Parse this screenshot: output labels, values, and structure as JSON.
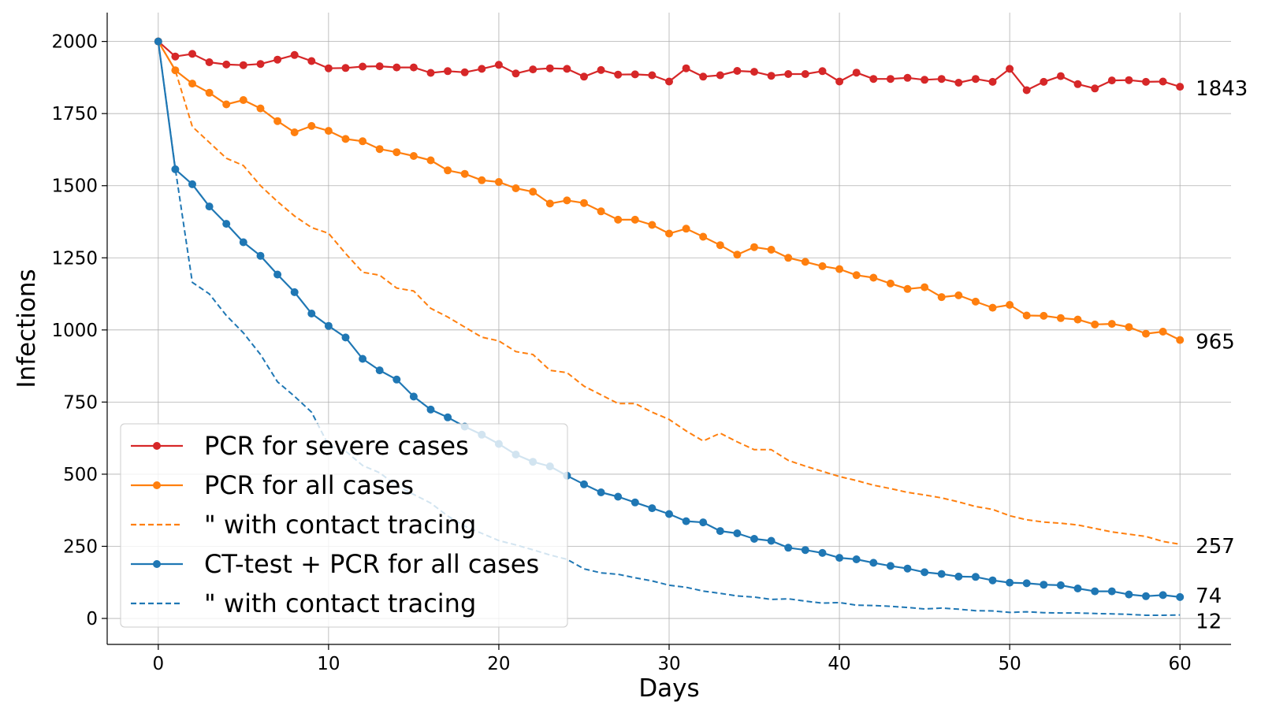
{
  "chart_data": {
    "type": "line",
    "title": "",
    "xlabel": "Days",
    "ylabel": "Infections",
    "xlim": [
      -3,
      63
    ],
    "ylim": [
      -90,
      2100
    ],
    "xticks": [
      0,
      10,
      20,
      30,
      40,
      50,
      60
    ],
    "yticks": [
      0,
      250,
      500,
      750,
      1000,
      1250,
      1500,
      1750,
      2000
    ],
    "grid": true,
    "legend_position": "lower-left",
    "series": [
      {
        "name": "PCR for severe cases",
        "color": "#d62728",
        "style": "solid",
        "markers": true,
        "end_label": "1843",
        "x": [
          0,
          1,
          2,
          3,
          4,
          5,
          6,
          7,
          8,
          9,
          10,
          11,
          12,
          13,
          14,
          15,
          16,
          17,
          18,
          19,
          20,
          21,
          22,
          23,
          24,
          25,
          26,
          27,
          28,
          29,
          30,
          31,
          32,
          33,
          34,
          35,
          36,
          37,
          38,
          39,
          40,
          41,
          42,
          43,
          44,
          45,
          46,
          47,
          48,
          49,
          50,
          51,
          52,
          53,
          54,
          55,
          56,
          57,
          58,
          59,
          60
        ],
        "y": [
          2000,
          1948,
          1957,
          1928,
          1920,
          1918,
          1922,
          1937,
          1953,
          1932,
          1907,
          1908,
          1913,
          1914,
          1910,
          1910,
          1891,
          1897,
          1893,
          1905,
          1919,
          1889,
          1903,
          1907,
          1905,
          1878,
          1901,
          1885,
          1886,
          1883,
          1861,
          1907,
          1878,
          1883,
          1898,
          1895,
          1881,
          1887,
          1887,
          1897,
          1861,
          1892,
          1870,
          1870,
          1874,
          1867,
          1870,
          1857,
          1870,
          1860,
          1905,
          1831,
          1860,
          1880,
          1852,
          1837,
          1865,
          1866,
          1860,
          1861,
          1843
        ]
      },
      {
        "name": "PCR for all cases",
        "color": "#ff7f0e",
        "style": "solid",
        "markers": true,
        "end_label": "965",
        "x": [
          0,
          1,
          2,
          3,
          4,
          5,
          6,
          7,
          8,
          9,
          10,
          11,
          12,
          13,
          14,
          15,
          16,
          17,
          18,
          19,
          20,
          21,
          22,
          23,
          24,
          25,
          26,
          27,
          28,
          29,
          30,
          31,
          32,
          33,
          34,
          35,
          36,
          37,
          38,
          39,
          40,
          41,
          42,
          43,
          44,
          45,
          46,
          47,
          48,
          49,
          50,
          51,
          52,
          53,
          54,
          55,
          56,
          57,
          58,
          59,
          60
        ],
        "y": [
          2000,
          1900,
          1854,
          1822,
          1782,
          1797,
          1768,
          1724,
          1685,
          1707,
          1690,
          1662,
          1654,
          1627,
          1616,
          1603,
          1588,
          1553,
          1541,
          1519,
          1513,
          1491,
          1479,
          1438,
          1449,
          1440,
          1411,
          1382,
          1382,
          1364,
          1334,
          1351,
          1323,
          1294,
          1261,
          1287,
          1278,
          1250,
          1236,
          1221,
          1211,
          1190,
          1181,
          1161,
          1142,
          1148,
          1114,
          1120,
          1098,
          1077,
          1087,
          1050,
          1049,
          1041,
          1036,
          1019,
          1021,
          1010,
          987,
          994,
          965
        ]
      },
      {
        "name": "\" with contact tracing",
        "color": "#ff7f0e",
        "style": "dashed",
        "markers": false,
        "end_label": "257",
        "x": [
          0,
          1,
          2,
          3,
          4,
          5,
          6,
          7,
          8,
          9,
          10,
          11,
          12,
          13,
          14,
          15,
          16,
          17,
          18,
          19,
          20,
          21,
          22,
          23,
          24,
          25,
          26,
          27,
          28,
          29,
          30,
          31,
          32,
          33,
          34,
          35,
          36,
          37,
          38,
          39,
          40,
          41,
          42,
          43,
          44,
          45,
          46,
          47,
          48,
          49,
          50,
          51,
          52,
          53,
          54,
          55,
          56,
          57,
          58,
          59,
          60
        ],
        "y": [
          2000,
          1900,
          1705,
          1650,
          1595,
          1570,
          1500,
          1445,
          1395,
          1355,
          1335,
          1265,
          1200,
          1190,
          1145,
          1135,
          1075,
          1045,
          1010,
          975,
          962,
          925,
          915,
          860,
          852,
          805,
          775,
          745,
          745,
          715,
          690,
          650,
          615,
          642,
          612,
          585,
          585,
          548,
          528,
          510,
          492,
          478,
          462,
          450,
          437,
          428,
          418,
          404,
          388,
          378,
          356,
          342,
          334,
          330,
          324,
          312,
          300,
          292,
          284,
          267,
          257
        ]
      },
      {
        "name": "CT-test + PCR for all cases",
        "color": "#1f77b4",
        "style": "solid",
        "markers": true,
        "end_label": "74",
        "x": [
          0,
          1,
          2,
          3,
          4,
          5,
          6,
          7,
          8,
          9,
          10,
          11,
          12,
          13,
          14,
          15,
          16,
          17,
          18,
          19,
          20,
          21,
          22,
          23,
          24,
          25,
          26,
          27,
          28,
          29,
          30,
          31,
          32,
          33,
          34,
          35,
          36,
          37,
          38,
          39,
          40,
          41,
          42,
          43,
          44,
          45,
          46,
          47,
          48,
          49,
          50,
          51,
          52,
          53,
          54,
          55,
          56,
          57,
          58,
          59,
          60
        ],
        "y": [
          2000,
          1557,
          1505,
          1428,
          1368,
          1304,
          1257,
          1192,
          1131,
          1057,
          1014,
          974,
          900,
          860,
          828,
          769,
          724,
          697,
          665,
          637,
          605,
          568,
          543,
          527,
          495,
          465,
          437,
          422,
          402,
          382,
          362,
          337,
          333,
          303,
          295,
          276,
          269,
          245,
          237,
          227,
          210,
          205,
          193,
          182,
          173,
          160,
          154,
          145,
          144,
          132,
          124,
          122,
          117,
          115,
          104,
          94,
          94,
          83,
          77,
          81,
          74
        ]
      },
      {
        "name": "\" with contact tracing",
        "color": "#1f77b4",
        "style": "dashed",
        "markers": false,
        "end_label": "12",
        "x": [
          0,
          1,
          2,
          3,
          4,
          5,
          6,
          7,
          8,
          9,
          10,
          11,
          12,
          13,
          14,
          15,
          16,
          17,
          18,
          19,
          20,
          21,
          22,
          23,
          24,
          25,
          26,
          27,
          28,
          29,
          30,
          31,
          32,
          33,
          34,
          35,
          36,
          37,
          38,
          39,
          40,
          41,
          42,
          43,
          44,
          45,
          46,
          47,
          48,
          49,
          50,
          51,
          52,
          53,
          54,
          55,
          56,
          57,
          58,
          59,
          60
        ],
        "y": [
          2000,
          1560,
          1165,
          1125,
          1050,
          990,
          915,
          820,
          770,
          715,
          600,
          580,
          530,
          505,
          460,
          430,
          400,
          355,
          320,
          295,
          270,
          255,
          238,
          220,
          205,
          172,
          158,
          153,
          141,
          130,
          115,
          108,
          95,
          87,
          78,
          74,
          66,
          68,
          60,
          53,
          55,
          46,
          45,
          42,
          38,
          33,
          36,
          32,
          27,
          26,
          21,
          23,
          20,
          19,
          19,
          17,
          16,
          14,
          11,
          11,
          12
        ]
      }
    ]
  }
}
